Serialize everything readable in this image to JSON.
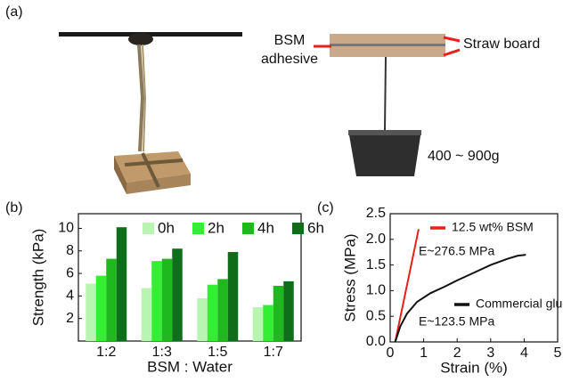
{
  "panel_labels": [
    "(a)",
    "(b)",
    "(c)"
  ],
  "diagram": {
    "adhesive_label": [
      "BSM",
      "adhesive"
    ],
    "board_label": "Straw board",
    "load_label": "400 ~ 900g"
  },
  "chart_data": [
    {
      "type": "bar",
      "categories": [
        "1:2",
        "1:3",
        "1:5",
        "1:7"
      ],
      "series": [
        {
          "name": "0h",
          "color": "#b8f5b0",
          "values": [
            5.1,
            4.7,
            3.8,
            3.0
          ]
        },
        {
          "name": "2h",
          "color": "#33ee33",
          "values": [
            5.8,
            7.1,
            5.0,
            3.2
          ]
        },
        {
          "name": "4h",
          "color": "#1fb81f",
          "values": [
            7.3,
            7.3,
            5.5,
            4.9
          ]
        },
        {
          "name": "6h",
          "color": "#0f6e1a",
          "values": [
            10.1,
            8.2,
            7.9,
            5.3
          ]
        }
      ],
      "ylim": [
        0,
        11.3
      ],
      "yticks": [
        2,
        4,
        6,
        8,
        10
      ],
      "xlabel": "BSM : Water",
      "ylabel": "Strength (kPa)"
    },
    {
      "type": "line",
      "series": [
        {
          "name": "12.5 wt% BSM",
          "color": "#e8201a",
          "x": [
            0.15,
            0.85
          ],
          "values": [
            0,
            2.2
          ]
        },
        {
          "name": "Commercial glue",
          "color": "#111111",
          "x": [
            0.15,
            0.3,
            0.5,
            0.8,
            1.2,
            1.6,
            2.0,
            2.5,
            3.0,
            3.5,
            3.8,
            4.05
          ],
          "values": [
            0,
            0.3,
            0.55,
            0.78,
            0.95,
            1.07,
            1.2,
            1.35,
            1.5,
            1.62,
            1.68,
            1.7
          ]
        }
      ],
      "annotations": [
        "E~276.5 MPa",
        "E~123.5 MPa"
      ],
      "xlim": [
        0,
        5
      ],
      "xticks": [
        0,
        1,
        2,
        3,
        4,
        5
      ],
      "ylim": [
        0,
        2.5
      ],
      "yticks": [
        {
          "value": 0,
          "label": "0.0"
        },
        0.5,
        {
          "value": 1,
          "label": "1.0"
        },
        1.5,
        {
          "value": 2,
          "label": "2.0"
        },
        2.5
      ],
      "xlabel": "Strain (%)",
      "ylabel": "Stress (MPa)"
    }
  ]
}
